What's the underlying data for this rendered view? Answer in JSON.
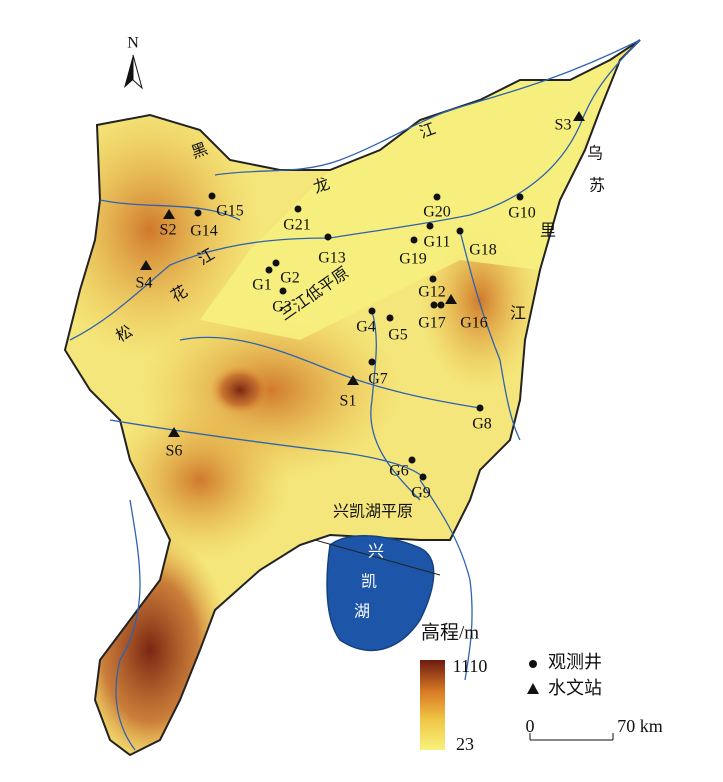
{
  "north": "N",
  "wells": [
    "G1",
    "G2",
    "G3",
    "G4",
    "G5",
    "G6",
    "G7",
    "G8",
    "G9",
    "G10",
    "G11",
    "G12",
    "G13",
    "G14",
    "G15",
    "G16",
    "G17",
    "G18",
    "G19",
    "G20",
    "G21"
  ],
  "stations": [
    "S1",
    "S2",
    "S3",
    "S4",
    "S6"
  ],
  "place_labels": [
    "黑",
    "龙",
    "江",
    "乌",
    "苏",
    "里",
    "江",
    "松",
    "花",
    "江",
    "三江低平原",
    "兴凯湖平原",
    "兴",
    "凯",
    "湖"
  ],
  "legend": {
    "elevation_title": "高程/m",
    "elevation_max": 1110,
    "elevation_min": 23,
    "well": "观测井",
    "station": "水文站"
  },
  "scale_bar": {
    "ticks": [
      0,
      {
        "value": 70,
        "label": "70 km"
      }
    ]
  }
}
